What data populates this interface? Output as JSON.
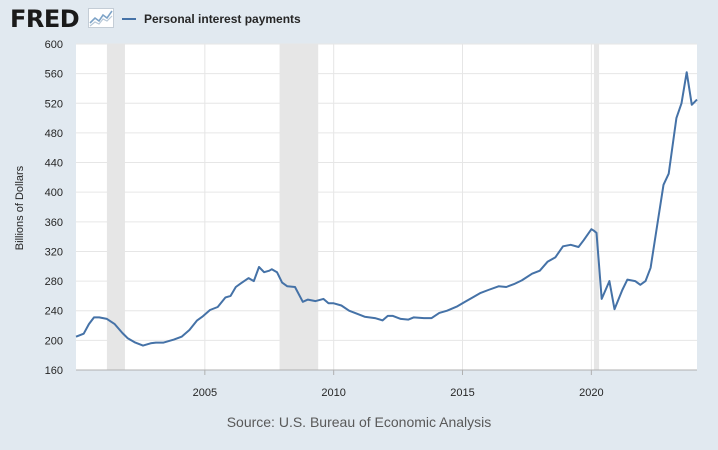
{
  "header": {
    "logo_text": "FRED",
    "legend_label": "Personal interest payments",
    "legend_color": "#4572a7"
  },
  "footer": {
    "source": "Source: U.S. Bureau of Economic Analysis"
  },
  "chart_data": {
    "type": "line",
    "title": "",
    "xlabel": "",
    "ylabel": "Billions of Dollars",
    "ylim": [
      160,
      600
    ],
    "yticks": [
      160,
      200,
      240,
      280,
      320,
      360,
      400,
      440,
      480,
      520,
      560,
      600
    ],
    "xlim": [
      2000.0,
      2024.1
    ],
    "xticks": [
      2005,
      2010,
      2015,
      2020
    ],
    "grid": true,
    "legend_position": "top-left",
    "recessions": [
      [
        2001.2,
        2001.9
      ],
      [
        2007.9,
        2009.4
      ],
      [
        2020.1,
        2020.3
      ]
    ],
    "colors": {
      "line": "#4572a7",
      "recession": "#e6e6e6",
      "grid": "#e6e6e6",
      "plot_bg": "#ffffff"
    },
    "series": [
      {
        "name": "Personal interest payments",
        "x": [
          2000.0,
          2000.3,
          2000.5,
          2000.7,
          2000.9,
          2001.2,
          2001.5,
          2001.8,
          2002.0,
          2002.3,
          2002.6,
          2002.9,
          2003.1,
          2003.4,
          2003.8,
          2004.1,
          2004.4,
          2004.7,
          2004.9,
          2005.2,
          2005.5,
          2005.8,
          2006.0,
          2006.2,
          2006.4,
          2006.7,
          2006.9,
          2007.1,
          2007.3,
          2007.5,
          2007.6,
          2007.8,
          2008.0,
          2008.2,
          2008.5,
          2008.8,
          2009.0,
          2009.3,
          2009.6,
          2009.8,
          2010.0,
          2010.3,
          2010.6,
          2010.9,
          2011.2,
          2011.6,
          2011.9,
          2012.1,
          2012.3,
          2012.6,
          2012.9,
          2013.1,
          2013.5,
          2013.8,
          2014.1,
          2014.4,
          2014.8,
          2015.1,
          2015.4,
          2015.7,
          2016.0,
          2016.4,
          2016.7,
          2017.0,
          2017.3,
          2017.7,
          2018.0,
          2018.3,
          2018.6,
          2018.9,
          2019.2,
          2019.5,
          2019.7,
          2020.0,
          2020.1,
          2020.2,
          2020.4,
          2020.7,
          2020.9,
          2021.2,
          2021.4,
          2021.7,
          2021.9,
          2022.1,
          2022.3,
          2022.6,
          2022.8,
          2023.0,
          2023.3,
          2023.5,
          2023.7,
          2023.9,
          2024.1
        ],
        "values": [
          205,
          209,
          222,
          231,
          231,
          229,
          222,
          210,
          203,
          197,
          193,
          196,
          197,
          197,
          201,
          205,
          214,
          227,
          232,
          241,
          245,
          258,
          260,
          272,
          277,
          284,
          280,
          299,
          292,
          294,
          296,
          292,
          278,
          273,
          272,
          252,
          255,
          253,
          256,
          250,
          250,
          247,
          240,
          236,
          232,
          230,
          227,
          233,
          233,
          229,
          228,
          231,
          230,
          230,
          237,
          240,
          246,
          252,
          258,
          264,
          268,
          273,
          272,
          276,
          281,
          290,
          294,
          306,
          312,
          327,
          329,
          326,
          335,
          350,
          348,
          345,
          256,
          280,
          242,
          268,
          282,
          280,
          275,
          280,
          298,
          365,
          410,
          425,
          500,
          520,
          562,
          518,
          525
        ]
      }
    ]
  }
}
